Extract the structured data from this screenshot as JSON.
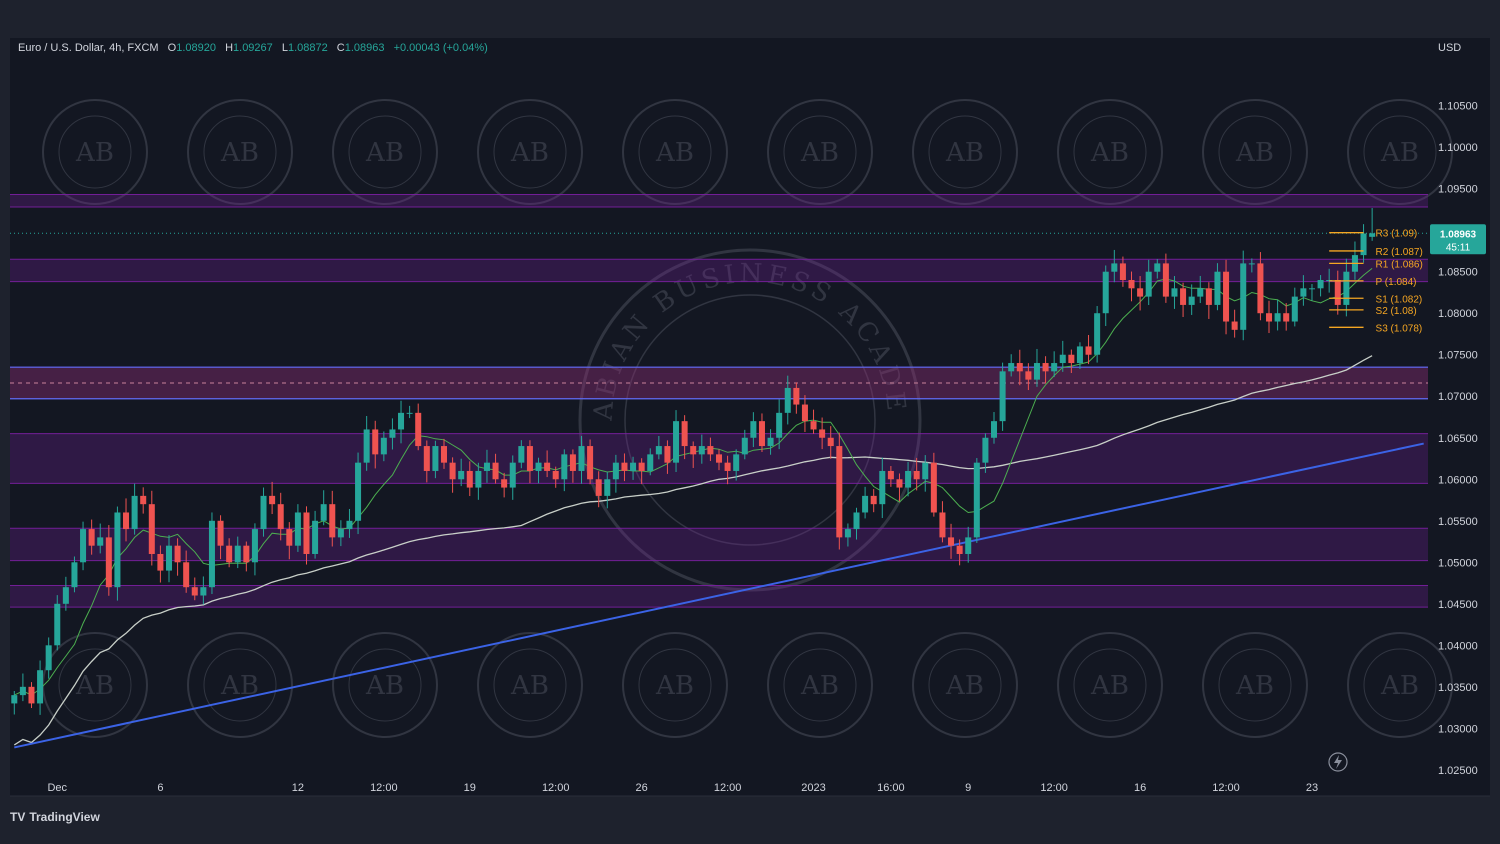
{
  "header": {
    "symbol": "Euro / U.S. Dollar, 4h, FXCM",
    "o_label": "O",
    "o_value": "1.08920",
    "h_label": "H",
    "h_value": "1.09267",
    "l_label": "L",
    "l_value": "1.08872",
    "c_label": "C",
    "c_value": "1.08963",
    "change": "+0.00043 (+0.04%)"
  },
  "currency": "USD",
  "brand": {
    "logo": "TV",
    "name": "TradingView"
  },
  "watermark": {
    "text": "ARABIAN BUSINESS ACADEMY",
    "initials": "AB"
  },
  "price_tag": {
    "price": "1.08963",
    "countdown": "45:11"
  },
  "colors": {
    "background": "#1e222d",
    "up": "#26a69a",
    "down": "#ef5350",
    "zone": "#7b1fa2",
    "trendline": "#3b63e6",
    "ma_long": "#c8cfc8",
    "ma_short": "#4caf50",
    "pivot": "#f5a623"
  },
  "chart_data": {
    "type": "candlestick",
    "y_axis": {
      "min": 1.0245,
      "max": 1.1105,
      "ticks": [
        1.025,
        1.03,
        1.035,
        1.04,
        1.045,
        1.05,
        1.055,
        1.06,
        1.065,
        1.07,
        1.075,
        1.08,
        1.085,
        1.09,
        1.095,
        1.1,
        1.105
      ],
      "tick_labels": [
        "1.02500",
        "1.03000",
        "1.03500",
        "1.04000",
        "1.04500",
        "1.05000",
        "1.05500",
        "1.06000",
        "1.06500",
        "1.07000",
        "1.07500",
        "1.08000",
        "1.08500",
        "1.09000",
        "1.09500",
        "1.10000",
        "1.10500"
      ]
    },
    "x_axis": {
      "bars_total": 165,
      "labels": [
        {
          "bar": 5,
          "text": "Dec"
        },
        {
          "bar": 17,
          "text": "6"
        },
        {
          "bar": 33,
          "text": "12"
        },
        {
          "bar": 43,
          "text": "12:00"
        },
        {
          "bar": 53,
          "text": "19"
        },
        {
          "bar": 63,
          "text": "12:00"
        },
        {
          "bar": 73,
          "text": "26"
        },
        {
          "bar": 83,
          "text": "12:00"
        },
        {
          "bar": 93,
          "text": "2023"
        },
        {
          "bar": 102,
          "text": "16:00"
        },
        {
          "bar": 111,
          "text": "9"
        },
        {
          "bar": 121,
          "text": "12:00"
        },
        {
          "bar": 131,
          "text": "16"
        },
        {
          "bar": 141,
          "text": "12:00"
        },
        {
          "bar": 151,
          "text": "23"
        }
      ]
    },
    "zones": [
      {
        "from": 1.0928,
        "to": 1.0943
      },
      {
        "from": 1.0838,
        "to": 1.0865
      },
      {
        "from": 1.0697,
        "to": 1.0735
      },
      {
        "from": 1.0595,
        "to": 1.0655
      },
      {
        "from": 1.0502,
        "to": 1.0541
      },
      {
        "from": 1.0446,
        "to": 1.0472
      }
    ],
    "zone_lines": [
      1.0735,
      1.0697
    ],
    "dashed_level": 1.0716,
    "current_price_level": 1.08963,
    "trendline": {
      "bar_start": 0,
      "price_start": 1.0277,
      "bar_end": 164,
      "price_end": 1.0643
    },
    "pivots": [
      {
        "label": "R3 (1.09)",
        "value": 1.0897
      },
      {
        "label": "R2 (1.087)",
        "value": 1.0875
      },
      {
        "label": "R1 (1.086)",
        "value": 1.086
      },
      {
        "label": "P (1.084)",
        "value": 1.0839
      },
      {
        "label": "S1 (1.082)",
        "value": 1.0818
      },
      {
        "label": "S2 (1.08)",
        "value": 1.0804
      },
      {
        "label": "S3 (1.078)",
        "value": 1.0783
      }
    ],
    "anchors": [
      [
        0,
        1.034
      ],
      [
        1,
        1.035
      ],
      [
        2,
        1.033
      ],
      [
        3,
        1.037
      ],
      [
        4,
        1.04
      ],
      [
        5,
        1.045
      ],
      [
        6,
        1.047
      ],
      [
        7,
        1.05
      ],
      [
        8,
        1.054
      ],
      [
        9,
        1.052
      ],
      [
        10,
        1.053
      ],
      [
        11,
        1.047
      ],
      [
        12,
        1.056
      ],
      [
        13,
        1.054
      ],
      [
        14,
        1.058
      ],
      [
        15,
        1.057
      ],
      [
        16,
        1.051
      ],
      [
        17,
        1.049
      ],
      [
        18,
        1.052
      ],
      [
        19,
        1.05
      ],
      [
        20,
        1.047
      ],
      [
        21,
        1.046
      ],
      [
        22,
        1.047
      ],
      [
        23,
        1.055
      ],
      [
        24,
        1.052
      ],
      [
        25,
        1.05
      ],
      [
        26,
        1.052
      ],
      [
        27,
        1.05
      ],
      [
        28,
        1.054
      ],
      [
        29,
        1.058
      ],
      [
        30,
        1.057
      ],
      [
        31,
        1.054
      ],
      [
        32,
        1.052
      ],
      [
        33,
        1.056
      ],
      [
        34,
        1.051
      ],
      [
        35,
        1.055
      ],
      [
        36,
        1.057
      ],
      [
        37,
        1.053
      ],
      [
        38,
        1.054
      ],
      [
        39,
        1.055
      ],
      [
        40,
        1.062
      ],
      [
        41,
        1.066
      ],
      [
        42,
        1.063
      ],
      [
        43,
        1.065
      ],
      [
        44,
        1.066
      ],
      [
        45,
        1.068
      ],
      [
        46,
        1.068
      ],
      [
        47,
        1.064
      ],
      [
        48,
        1.061
      ],
      [
        49,
        1.064
      ],
      [
        50,
        1.062
      ],
      [
        51,
        1.06
      ],
      [
        52,
        1.061
      ],
      [
        53,
        1.059
      ],
      [
        54,
        1.061
      ],
      [
        55,
        1.062
      ],
      [
        56,
        1.06
      ],
      [
        57,
        1.059
      ],
      [
        58,
        1.062
      ],
      [
        59,
        1.064
      ],
      [
        60,
        1.061
      ],
      [
        61,
        1.062
      ],
      [
        62,
        1.061
      ],
      [
        63,
        1.06
      ],
      [
        64,
        1.063
      ],
      [
        65,
        1.061
      ],
      [
        66,
        1.064
      ],
      [
        67,
        1.06
      ],
      [
        68,
        1.058
      ],
      [
        69,
        1.06
      ],
      [
        70,
        1.062
      ],
      [
        71,
        1.061
      ],
      [
        72,
        1.062
      ],
      [
        73,
        1.061
      ],
      [
        74,
        1.063
      ],
      [
        75,
        1.064
      ],
      [
        76,
        1.062
      ],
      [
        77,
        1.067
      ],
      [
        78,
        1.064
      ],
      [
        79,
        1.063
      ],
      [
        80,
        1.064
      ],
      [
        81,
        1.063
      ],
      [
        82,
        1.062
      ],
      [
        83,
        1.061
      ],
      [
        84,
        1.063
      ],
      [
        85,
        1.065
      ],
      [
        86,
        1.067
      ],
      [
        87,
        1.064
      ],
      [
        88,
        1.065
      ],
      [
        89,
        1.068
      ],
      [
        90,
        1.071
      ],
      [
        91,
        1.069
      ],
      [
        92,
        1.067
      ],
      [
        93,
        1.066
      ],
      [
        94,
        1.065
      ],
      [
        95,
        1.064
      ],
      [
        96,
        1.053
      ],
      [
        97,
        1.054
      ],
      [
        98,
        1.056
      ],
      [
        99,
        1.058
      ],
      [
        100,
        1.057
      ],
      [
        101,
        1.061
      ],
      [
        102,
        1.06
      ],
      [
        103,
        1.059
      ],
      [
        104,
        1.061
      ],
      [
        105,
        1.06
      ],
      [
        106,
        1.062
      ],
      [
        107,
        1.056
      ],
      [
        108,
        1.053
      ],
      [
        109,
        1.052
      ],
      [
        110,
        1.051
      ],
      [
        111,
        1.053
      ],
      [
        112,
        1.062
      ],
      [
        113,
        1.065
      ],
      [
        114,
        1.067
      ],
      [
        115,
        1.073
      ],
      [
        116,
        1.074
      ],
      [
        117,
        1.073
      ],
      [
        118,
        1.072
      ],
      [
        119,
        1.074
      ],
      [
        120,
        1.073
      ],
      [
        121,
        1.074
      ],
      [
        122,
        1.075
      ],
      [
        123,
        1.074
      ],
      [
        124,
        1.076
      ],
      [
        125,
        1.075
      ],
      [
        126,
        1.08
      ],
      [
        127,
        1.085
      ],
      [
        128,
        1.086
      ],
      [
        129,
        1.084
      ],
      [
        130,
        1.083
      ],
      [
        131,
        1.082
      ],
      [
        132,
        1.085
      ],
      [
        133,
        1.086
      ],
      [
        134,
        1.082
      ],
      [
        135,
        1.083
      ],
      [
        136,
        1.081
      ],
      [
        137,
        1.082
      ],
      [
        138,
        1.083
      ],
      [
        139,
        1.081
      ],
      [
        140,
        1.085
      ],
      [
        141,
        1.079
      ],
      [
        142,
        1.078
      ],
      [
        143,
        1.086
      ],
      [
        144,
        1.086
      ],
      [
        145,
        1.08
      ],
      [
        146,
        1.079
      ],
      [
        147,
        1.08
      ],
      [
        148,
        1.079
      ],
      [
        149,
        1.082
      ],
      [
        150,
        1.083
      ],
      [
        151,
        1.083
      ],
      [
        152,
        1.084
      ],
      [
        153,
        1.084
      ],
      [
        154,
        1.081
      ],
      [
        155,
        1.085
      ],
      [
        156,
        1.087
      ],
      [
        157,
        1.0896
      ],
      [
        158,
        1.0896
      ]
    ]
  }
}
